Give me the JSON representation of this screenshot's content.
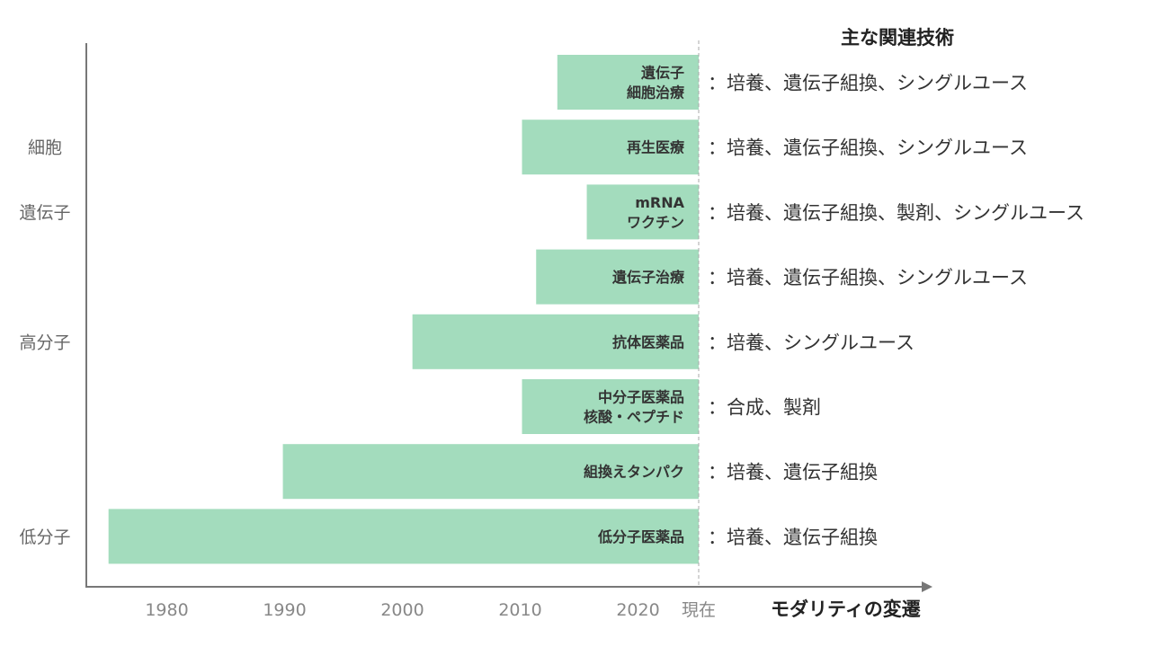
{
  "chart_data": {
    "type": "bar",
    "orientation": "horizontal",
    "title": "主な関連技術",
    "xlabel": "モダリティの変遷",
    "x_ticks": [
      "1980",
      "1990",
      "2000",
      "2010",
      "2020"
    ],
    "present_label": "現在",
    "xlim": [
      1974,
      2025
    ],
    "category_labels": [
      {
        "label": "細胞",
        "anchor": "再生医療"
      },
      {
        "label": "遺伝子",
        "anchor": "mRNA"
      },
      {
        "label": "高分子",
        "anchor": "抗体医薬品"
      },
      {
        "label": "低分子",
        "anchor": "低分子医薬品"
      }
    ],
    "bars": [
      {
        "lines": [
          "遺伝子",
          "細胞治療"
        ],
        "start": 2013,
        "tech": "：培養、遺伝子組換、シングルユース"
      },
      {
        "lines": [
          "再生医療"
        ],
        "start": 2010,
        "tech": "：培養、遺伝子組換、シングルユース"
      },
      {
        "lines": [
          "mRNA",
          "ワクチン"
        ],
        "start": 2015.5,
        "tech": "：培養、遺伝子組換、製剤、シングルユース"
      },
      {
        "lines": [
          "遺伝子治療"
        ],
        "start": 2011.2,
        "tech": "：培養、遺伝子組換、シングルユース"
      },
      {
        "lines": [
          "抗体医薬品"
        ],
        "start": 2000.7,
        "tech": "：培養、シングルユース"
      },
      {
        "lines": [
          "中分子医薬品",
          "核酸・ペプチド"
        ],
        "start": 2010,
        "tech": "：合成、製剤"
      },
      {
        "lines": [
          "組換えタンパク"
        ],
        "start": 1989.7,
        "tech": "：培養、遺伝子組換"
      },
      {
        "lines": [
          "低分子医薬品"
        ],
        "start": 1974.9,
        "tech": "：培養、遺伝子組換"
      }
    ],
    "colors": {
      "bar": "#a3dcbd",
      "axis": "#777777",
      "present_line": "#aaaaaa"
    },
    "grid": false
  }
}
